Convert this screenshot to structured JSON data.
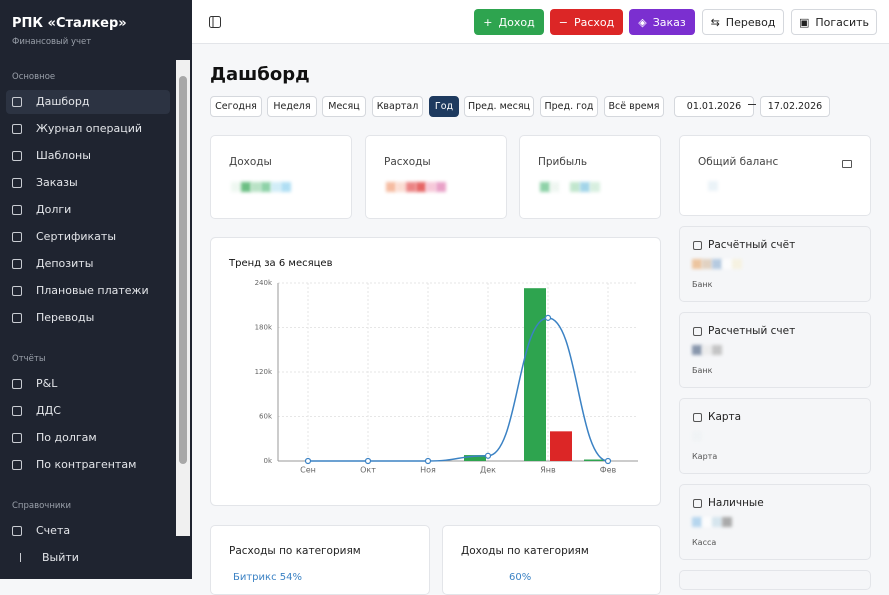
{
  "sidebar": {
    "title": "РПК «Сталкер»",
    "subtitle": "Финансовый учет",
    "sections": [
      {
        "title": "Основное",
        "items": [
          "Дашборд",
          "Журнал операций",
          "Шаблоны",
          "Заказы",
          "Долги",
          "Сертификаты",
          "Депозиты",
          "Плановые платежи",
          "Переводы"
        ]
      },
      {
        "title": "Отчёты",
        "items": [
          "P&L",
          "ДДС",
          "По долгам",
          "По контрагентам"
        ]
      },
      {
        "title": "Справочники",
        "items": [
          "Счета"
        ]
      }
    ],
    "logout": "Выйти"
  },
  "topbar": {
    "buttons": [
      "Доход",
      "Расход",
      "Заказ",
      "Перевод",
      "Погасить"
    ]
  },
  "page_title": "Дашборд",
  "periods": [
    "Сегодня",
    "Неделя",
    "Месяц",
    "Квартал",
    "Год",
    "Пред. месяц",
    "Пред. год",
    "Всё время"
  ],
  "date_from": "01.01.2026",
  "date_to": "17.02.2026",
  "cards": [
    "Доходы",
    "Расходы",
    "Прибыль"
  ],
  "balance": "Общий баланс",
  "accounts": [
    {
      "name": "Расчётный счёт",
      "type": "Банк"
    },
    {
      "name": "Расчетный счет",
      "type": "Банк"
    },
    {
      "name": "Карта",
      "type": "Карта"
    },
    {
      "name": "Наличные",
      "type": "Касса"
    }
  ],
  "bottom": [
    {
      "title": "Расходы по категориям",
      "item": "Битрикс 54%"
    },
    {
      "title": "Доходы по категориям",
      "item": "60%"
    }
  ],
  "chart_data": {
    "type": "bar",
    "title": "Тренд за 6 месяцев",
    "categories": [
      "Сен",
      "Окт",
      "Ноя",
      "Дек",
      "Янв",
      "Фев"
    ],
    "series": [
      {
        "color": "#2ea44f",
        "values": [
          0,
          0,
          0,
          8000,
          233000,
          2000
        ]
      },
      {
        "color": "#dc2626",
        "values": [
          0,
          0,
          0,
          0,
          40000,
          0
        ]
      },
      {
        "type": "line",
        "color": "#3b82c4",
        "values": [
          0,
          0,
          0,
          7000,
          193000,
          0
        ]
      }
    ],
    "ylim": [
      0,
      240000
    ],
    "yticks": [
      {
        "value": 0,
        "label": "0k"
      },
      {
        "value": 60000,
        "label": "60k"
      },
      {
        "value": 120000,
        "label": "120k"
      },
      {
        "value": 180000,
        "label": "180k"
      },
      {
        "value": 240000,
        "label": "240k"
      }
    ],
    "grid": true
  }
}
